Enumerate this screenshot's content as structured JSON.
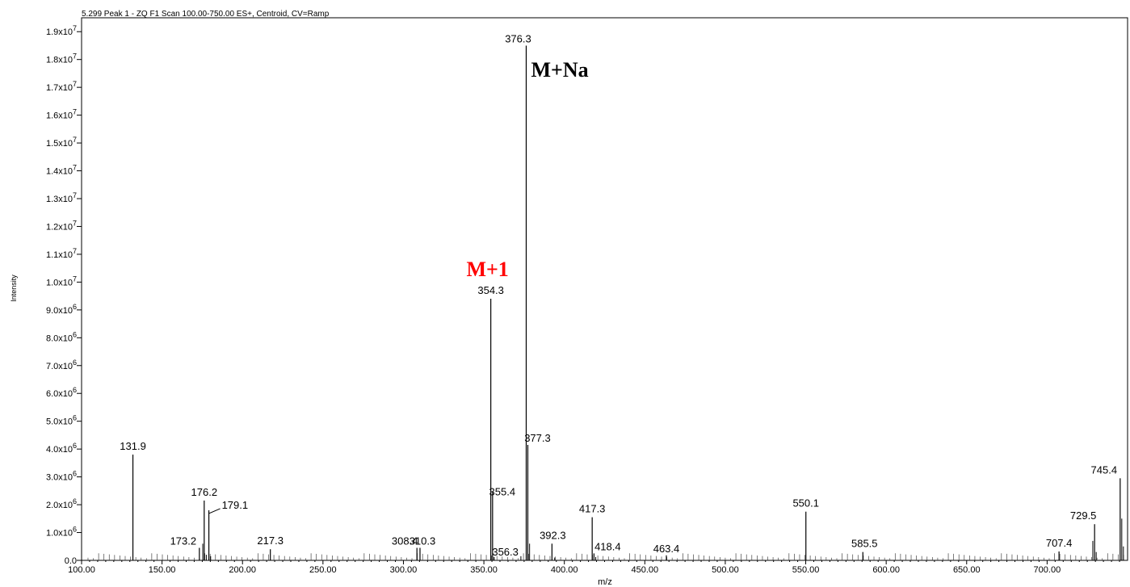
{
  "header": "5.299 Peak 1 - ZQ F1 Scan 100.00-750.00 ES+, Centroid, CV=Ramp",
  "chart_data": {
    "type": "bar",
    "title": "5.299 Peak 1 - ZQ F1 Scan 100.00-750.00 ES+, Centroid, CV=Ramp",
    "xlabel": "m/z",
    "ylabel": "Intensity",
    "xlim": [
      100,
      750
    ],
    "ylim": [
      0,
      19500000
    ],
    "x_ticks": [
      "100.00",
      "150.00",
      "200.00",
      "250.00",
      "300.00",
      "350.00",
      "400.00",
      "450.00",
      "500.00",
      "550.00",
      "600.00",
      "650.00",
      "700.00"
    ],
    "y_ticks": [
      {
        "mant": "0.0",
        "exp": ""
      },
      {
        "mant": "1.0x10",
        "exp": "6"
      },
      {
        "mant": "2.0x10",
        "exp": "6"
      },
      {
        "mant": "3.0x10",
        "exp": "6"
      },
      {
        "mant": "4.0x10",
        "exp": "6"
      },
      {
        "mant": "5.0x10",
        "exp": "6"
      },
      {
        "mant": "6.0x10",
        "exp": "6"
      },
      {
        "mant": "7.0x10",
        "exp": "6"
      },
      {
        "mant": "8.0x10",
        "exp": "6"
      },
      {
        "mant": "9.0x10",
        "exp": "6"
      },
      {
        "mant": "1.0x10",
        "exp": "7"
      },
      {
        "mant": "1.1x10",
        "exp": "7"
      },
      {
        "mant": "1.2x10",
        "exp": "7"
      },
      {
        "mant": "1.3x10",
        "exp": "7"
      },
      {
        "mant": "1.4x10",
        "exp": "7"
      },
      {
        "mant": "1.5x10",
        "exp": "7"
      },
      {
        "mant": "1.6x10",
        "exp": "7"
      },
      {
        "mant": "1.7x10",
        "exp": "7"
      },
      {
        "mant": "1.8x10",
        "exp": "7"
      },
      {
        "mant": "1.9x10",
        "exp": "7"
      }
    ],
    "peaks": [
      {
        "mz": 131.9,
        "intensity": 3800000,
        "label": "131.9"
      },
      {
        "mz": 173.2,
        "intensity": 450000,
        "label": "173.2"
      },
      {
        "mz": 176.2,
        "intensity": 2150000,
        "label": "176.2"
      },
      {
        "mz": 179.1,
        "intensity": 1800000,
        "label": "179.1"
      },
      {
        "mz": 217.3,
        "intensity": 400000,
        "label": "217.3"
      },
      {
        "mz": 308.4,
        "intensity": 450000,
        "label": "308.4"
      },
      {
        "mz": 310.3,
        "intensity": 450000,
        "label": "310.3"
      },
      {
        "mz": 354.3,
        "intensity": 9400000,
        "label": "354.3"
      },
      {
        "mz": 355.4,
        "intensity": 2450000,
        "label": "355.4"
      },
      {
        "mz": 356.3,
        "intensity": 120000,
        "label": "356.3"
      },
      {
        "mz": 376.3,
        "intensity": 18500000,
        "label": "376.3"
      },
      {
        "mz": 377.3,
        "intensity": 4150000,
        "label": "377.3"
      },
      {
        "mz": 392.3,
        "intensity": 600000,
        "label": "392.3"
      },
      {
        "mz": 417.3,
        "intensity": 1550000,
        "label": "417.3"
      },
      {
        "mz": 418.4,
        "intensity": 250000,
        "label": "418.4"
      },
      {
        "mz": 463.4,
        "intensity": 180000,
        "label": "463.4"
      },
      {
        "mz": 550.1,
        "intensity": 1750000,
        "label": "550.1"
      },
      {
        "mz": 585.5,
        "intensity": 300000,
        "label": "585.5"
      },
      {
        "mz": 707.4,
        "intensity": 320000,
        "label": "707.4"
      },
      {
        "mz": 729.5,
        "intensity": 1300000,
        "label": "729.5"
      },
      {
        "mz": 745.4,
        "intensity": 2950000,
        "label": "745.4"
      }
    ],
    "minor_peaks": [
      {
        "mz": 175.3,
        "intensity": 600000
      },
      {
        "mz": 177.5,
        "intensity": 200000
      },
      {
        "mz": 180.2,
        "intensity": 150000
      },
      {
        "mz": 373.0,
        "intensity": 150000
      },
      {
        "mz": 378.4,
        "intensity": 600000
      },
      {
        "mz": 394.0,
        "intensity": 100000
      },
      {
        "mz": 419.5,
        "intensity": 120000
      },
      {
        "mz": 728.4,
        "intensity": 700000
      },
      {
        "mz": 730.5,
        "intensity": 300000
      },
      {
        "mz": 746.4,
        "intensity": 1500000
      },
      {
        "mz": 747.4,
        "intensity": 500000
      }
    ],
    "annotations": [
      {
        "text": "M+Na",
        "color": "#000000",
        "anchor_mz": 376.3
      },
      {
        "text": "M+1",
        "color": "#ff0000",
        "anchor_mz": 354.3
      }
    ]
  }
}
